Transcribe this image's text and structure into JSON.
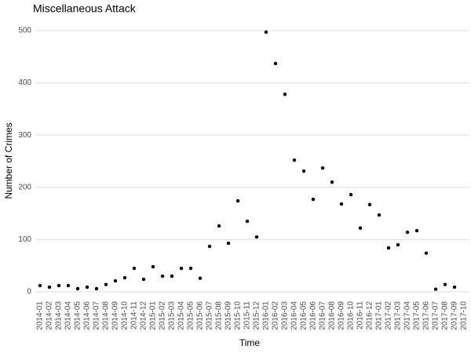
{
  "chart_data": {
    "type": "scatter",
    "title": "Miscellaneous Attack",
    "x_label": "Time",
    "y_label": "Number of Crimes",
    "categories": [
      "2014-01",
      "2014-02",
      "2014-03",
      "2014-04",
      "2014-05",
      "2014-06",
      "2014-07",
      "2014-08",
      "2014-09",
      "2014-10",
      "2014-11",
      "2014-12",
      "2015-01",
      "2015-02",
      "2015-03",
      "2015-04",
      "2015-05",
      "2015-06",
      "2015-07",
      "2015-08",
      "2015-09",
      "2015-10",
      "2015-11",
      "2015-12",
      "2016-01",
      "2016-02",
      "2016-03",
      "2016-04",
      "2016-05",
      "2016-06",
      "2016-07",
      "2016-08",
      "2016-09",
      "2016-10",
      "2016-11",
      "2016-12",
      "2017-01",
      "2017-02",
      "2017-03",
      "2017-04",
      "2017-05",
      "2017-06",
      "2017-07",
      "2017-08",
      "2017-09",
      "2017-10"
    ],
    "values": [
      12,
      9,
      12,
      12,
      6,
      9,
      6,
      14,
      21,
      27,
      45,
      24,
      48,
      30,
      30,
      45,
      45,
      26,
      87,
      126,
      93,
      174,
      135,
      105,
      497,
      437,
      378,
      252,
      231,
      177,
      237,
      210,
      168,
      186,
      122,
      167,
      147,
      84,
      90,
      114,
      117,
      74,
      5,
      14,
      9,
      null
    ],
    "color": "#000000",
    "ylim": [
      -12,
      521
    ],
    "yticks": [
      0,
      100,
      200,
      300,
      400,
      500
    ],
    "grid": true
  }
}
